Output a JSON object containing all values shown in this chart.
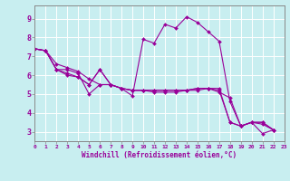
{
  "bg_color": "#c8eef0",
  "line_color": "#990099",
  "grid_color": "#b0d8dc",
  "spine_color": "#888888",
  "xlabel": "Windchill (Refroidissement éolien,°C)",
  "xlim": [
    0,
    23
  ],
  "ylim": [
    2.5,
    9.7
  ],
  "xticks": [
    0,
    1,
    2,
    3,
    4,
    5,
    6,
    7,
    8,
    9,
    10,
    11,
    12,
    13,
    14,
    15,
    16,
    17,
    18,
    19,
    20,
    21,
    22,
    23
  ],
  "yticks": [
    3,
    4,
    5,
    6,
    7,
    8,
    9
  ],
  "series": [
    [
      7.4,
      7.3,
      6.3,
      6.3,
      6.1,
      5.0,
      5.5,
      5.5,
      5.3,
      4.9,
      7.9,
      7.7,
      8.7,
      8.5,
      9.1,
      8.8,
      8.3,
      7.8,
      4.6,
      3.3,
      3.5,
      2.9,
      3.1
    ],
    [
      7.4,
      7.3,
      6.3,
      6.0,
      5.9,
      5.5,
      6.3,
      5.5,
      5.3,
      5.2,
      5.2,
      5.1,
      5.1,
      5.1,
      5.2,
      5.2,
      5.3,
      5.3,
      3.5,
      3.3,
      3.5,
      3.5,
      3.1
    ],
    [
      7.4,
      7.3,
      6.6,
      6.4,
      6.2,
      5.8,
      5.5,
      5.5,
      5.3,
      5.2,
      5.2,
      5.2,
      5.2,
      5.2,
      5.2,
      5.3,
      5.3,
      5.1,
      4.8,
      3.3,
      3.5,
      3.4,
      3.1
    ],
    [
      7.4,
      7.3,
      6.3,
      6.1,
      5.9,
      5.5,
      6.3,
      5.5,
      5.3,
      5.2,
      5.2,
      5.2,
      5.2,
      5.2,
      5.2,
      5.3,
      5.3,
      5.2,
      3.5,
      3.3,
      3.5,
      3.5,
      3.1
    ]
  ]
}
